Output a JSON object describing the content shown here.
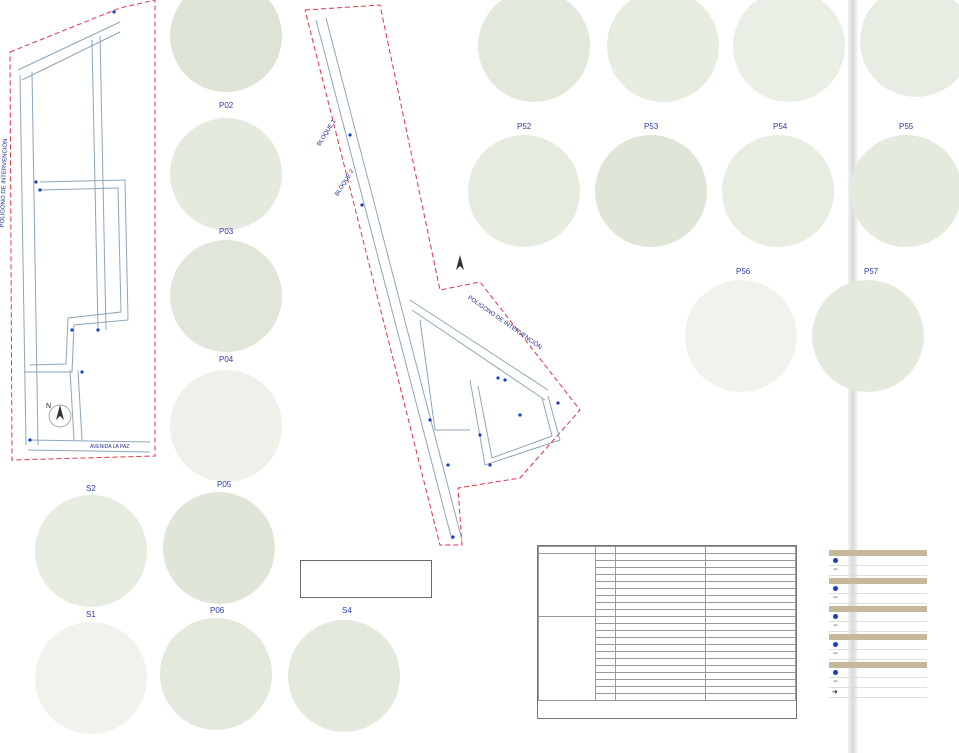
{
  "circle_labels": {
    "p02": "P02",
    "p03": "P03",
    "p04": "P04",
    "p05": "P05",
    "p06": "P06",
    "s1": "S1",
    "s2": "S2",
    "s4": "S4",
    "p52": "P52",
    "p53": "P53",
    "p54": "P54",
    "p55": "P55",
    "p56": "P56",
    "p57": "P57"
  },
  "plan_labels": {
    "poligono_left": "POLIGONO DE INTERVENCIÓN",
    "poligono_right": "POLIGONO DE INTERVENCIÓN",
    "bloque1": "BLOQUE 1",
    "bloque2": "BLOQUE 2",
    "avenida": "AVENIDA LA PAZ",
    "north": "N"
  },
  "colors": {
    "polygon": "#e0334a",
    "street": "#8fa6b8",
    "point": "#1a3cc8",
    "circle_bg": "#e6ece0"
  }
}
